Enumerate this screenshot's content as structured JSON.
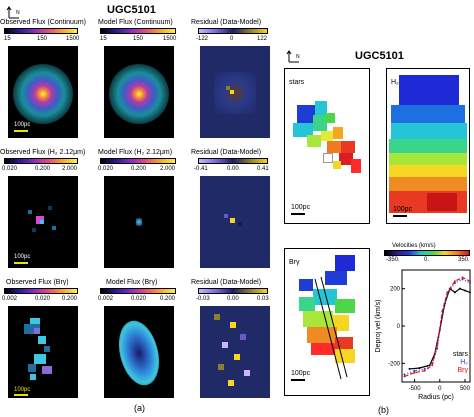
{
  "left": {
    "title": "UGC5101",
    "row1": {
      "obs_label": "Observed Flux (Continuum)",
      "mod_label": "Model Flux (Continuum)",
      "res_label": "Residual (Data-Model)",
      "obs_ticks": [
        "15",
        "150",
        "1500"
      ],
      "mod_ticks": [
        "15",
        "150",
        "1500"
      ],
      "res_ticks": [
        "-122",
        "0",
        "122"
      ],
      "scale": "100pc"
    },
    "row2": {
      "obs_label": "Observed Flux (H₂ 2.12μm)",
      "mod_label": "Model Flux (H₂ 2.12μm)",
      "res_label": "Residual (Data-Model)",
      "obs_ticks": [
        "0.020",
        "0.200",
        "2.000"
      ],
      "mod_ticks": [
        "0.020",
        "0.200",
        "2.000"
      ],
      "res_ticks": [
        "-0.41",
        "0.00",
        "0.41"
      ],
      "scale": "100pc"
    },
    "row3": {
      "obs_label": "Observed Flux (Brγ)",
      "mod_label": "Model Flux (Brγ)",
      "res_label": "Residual (Data-Model)",
      "obs_ticks": [
        "0.002",
        "0.020",
        "0.200"
      ],
      "mod_ticks": [
        "0.002",
        "0.020",
        "0.200"
      ],
      "res_ticks": [
        "-0.03",
        "0.00",
        "0.03"
      ],
      "scale": "100pc"
    },
    "compass": "N",
    "caption": "(a)"
  },
  "right": {
    "title": "UGC5101",
    "compass": "N",
    "stars_label": "stars",
    "h2_label": "H₂",
    "brg_label": "Brγ",
    "scale": "100pc",
    "velocity_bar_title": "Velocities (km/s)",
    "velocity_ticks": [
      "-350.",
      "0.",
      "350."
    ],
    "caption": "(b)",
    "chart_data": {
      "type": "line",
      "xlabel": "Radius (pc)",
      "ylabel": "Deproj vel (km/s)",
      "xlim": [
        -750,
        600
      ],
      "ylim": [
        -300,
        300
      ],
      "xticks": [
        "-500",
        "0",
        "500"
      ],
      "yticks": [
        "-200",
        "0",
        "200"
      ],
      "series": [
        {
          "name": "stars",
          "color": "#000000",
          "style": "solid",
          "x": [
            -600,
            -400,
            -200,
            -100,
            0,
            100,
            200,
            300,
            400,
            500,
            600
          ],
          "y": [
            -230,
            -225,
            -210,
            -150,
            -20,
            120,
            200,
            180,
            200,
            190,
            180
          ]
        },
        {
          "name": "H₂",
          "color": "#1f3bd6",
          "style": "dotted",
          "x": [
            -700,
            -500,
            -300,
            -150,
            -50,
            50,
            150,
            300,
            450,
            600
          ],
          "y": [
            -260,
            -240,
            -230,
            -200,
            -120,
            60,
            170,
            230,
            250,
            230
          ]
        },
        {
          "name": "Brγ",
          "color": "#e01010",
          "style": "dashed",
          "x": [
            -700,
            -500,
            -300,
            -150,
            -50,
            50,
            150,
            300,
            450,
            600
          ],
          "y": [
            -270,
            -250,
            -240,
            -210,
            -100,
            80,
            180,
            240,
            260,
            240
          ]
        }
      ],
      "legend": [
        "stars",
        "H₂",
        "Brγ"
      ]
    }
  }
}
